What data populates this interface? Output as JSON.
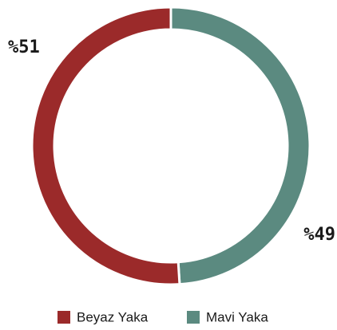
{
  "chart_data": {
    "type": "donut",
    "categories": [
      "Beyaz Yaka",
      "Mavi Yaka"
    ],
    "values": [
      51,
      49
    ],
    "value_labels": [
      "%51",
      "%49"
    ],
    "colors": [
      "#9b2a2a",
      "#5b8a80"
    ]
  }
}
